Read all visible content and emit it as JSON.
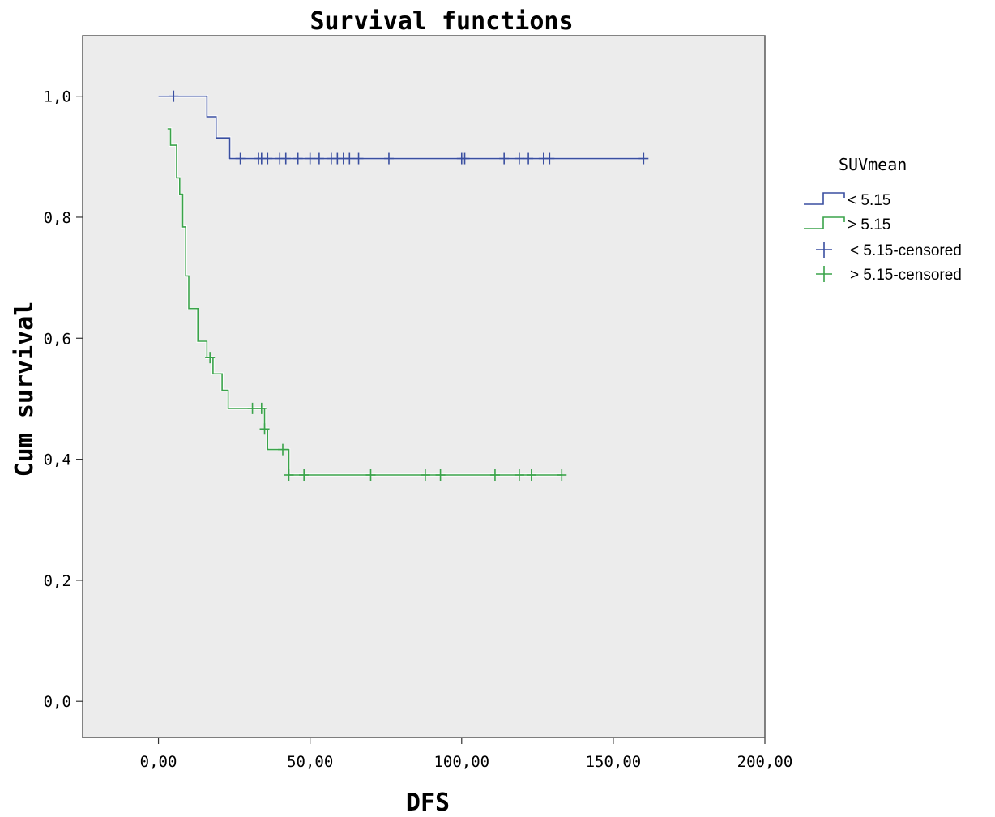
{
  "chart_data": {
    "type": "line",
    "subtype": "kaplan-meier step",
    "title": "Survival functions",
    "xlabel": "DFS",
    "ylabel": "Cum survival",
    "xlim": [
      -25,
      200
    ],
    "ylim": [
      -0.06,
      1.1
    ],
    "x_ticks": [
      0,
      50,
      100,
      150,
      200
    ],
    "x_tick_labels": [
      "0,00",
      "50,00",
      "100,00",
      "150,00",
      "200,00"
    ],
    "y_ticks": [
      0,
      0.2,
      0.4,
      0.6,
      0.8,
      1.0
    ],
    "y_tick_labels": [
      "0,0",
      "0,2",
      "0,4",
      "0,6",
      "0,8",
      "1,0"
    ],
    "grid": false,
    "plot_background": "#ececec",
    "legend": {
      "title": "SUVmean",
      "placement": "right",
      "entries": [
        "< 5.15",
        "> 5.15",
        "< 5.15-censored",
        "> 5.15-censored"
      ]
    },
    "series": [
      {
        "name": "< 5.15",
        "color": "#3a4fa0",
        "steps": [
          [
            0,
            1.0
          ],
          [
            16,
            1.0
          ],
          [
            16,
            0.966
          ],
          [
            19,
            0.966
          ],
          [
            19,
            0.931
          ],
          [
            23.5,
            0.931
          ],
          [
            23.5,
            0.897
          ],
          [
            160,
            0.897
          ]
        ],
        "censored": [
          [
            5,
            1.0
          ],
          [
            27,
            0.897
          ],
          [
            33,
            0.897
          ],
          [
            34,
            0.897
          ],
          [
            36,
            0.897
          ],
          [
            40,
            0.897
          ],
          [
            42,
            0.897
          ],
          [
            46,
            0.897
          ],
          [
            50,
            0.897
          ],
          [
            53,
            0.897
          ],
          [
            57,
            0.897
          ],
          [
            59,
            0.897
          ],
          [
            61,
            0.897
          ],
          [
            63,
            0.897
          ],
          [
            66,
            0.897
          ],
          [
            76,
            0.897
          ],
          [
            100,
            0.897
          ],
          [
            101,
            0.897
          ],
          [
            114,
            0.897
          ],
          [
            119,
            0.897
          ],
          [
            122,
            0.897
          ],
          [
            127,
            0.897
          ],
          [
            129,
            0.897
          ],
          [
            160,
            0.897
          ]
        ]
      },
      {
        "name": "> 5.15",
        "color": "#3aa34a",
        "steps": [
          [
            3,
            0.946
          ],
          [
            4,
            0.946
          ],
          [
            4,
            0.919
          ],
          [
            6,
            0.919
          ],
          [
            6,
            0.865
          ],
          [
            7,
            0.865
          ],
          [
            7,
            0.838
          ],
          [
            8,
            0.838
          ],
          [
            8,
            0.784
          ],
          [
            9,
            0.784
          ],
          [
            9,
            0.703
          ],
          [
            10,
            0.703
          ],
          [
            10,
            0.649
          ],
          [
            13,
            0.649
          ],
          [
            13,
            0.595
          ],
          [
            16,
            0.595
          ],
          [
            16,
            0.568
          ],
          [
            18,
            0.568
          ],
          [
            18,
            0.541
          ],
          [
            21,
            0.541
          ],
          [
            21,
            0.514
          ],
          [
            23,
            0.514
          ],
          [
            23,
            0.484
          ],
          [
            35,
            0.484
          ],
          [
            35,
            0.45
          ],
          [
            36,
            0.45
          ],
          [
            36,
            0.416
          ],
          [
            43,
            0.416
          ],
          [
            43,
            0.374
          ],
          [
            133,
            0.374
          ]
        ],
        "censored": [
          [
            17,
            0.568
          ],
          [
            31,
            0.484
          ],
          [
            34,
            0.484
          ],
          [
            35,
            0.45
          ],
          [
            41,
            0.416
          ],
          [
            43,
            0.374
          ],
          [
            48,
            0.374
          ],
          [
            70,
            0.374
          ],
          [
            88,
            0.374
          ],
          [
            93,
            0.374
          ],
          [
            111,
            0.374
          ],
          [
            119,
            0.374
          ],
          [
            123,
            0.374
          ],
          [
            133,
            0.374
          ]
        ]
      }
    ]
  }
}
